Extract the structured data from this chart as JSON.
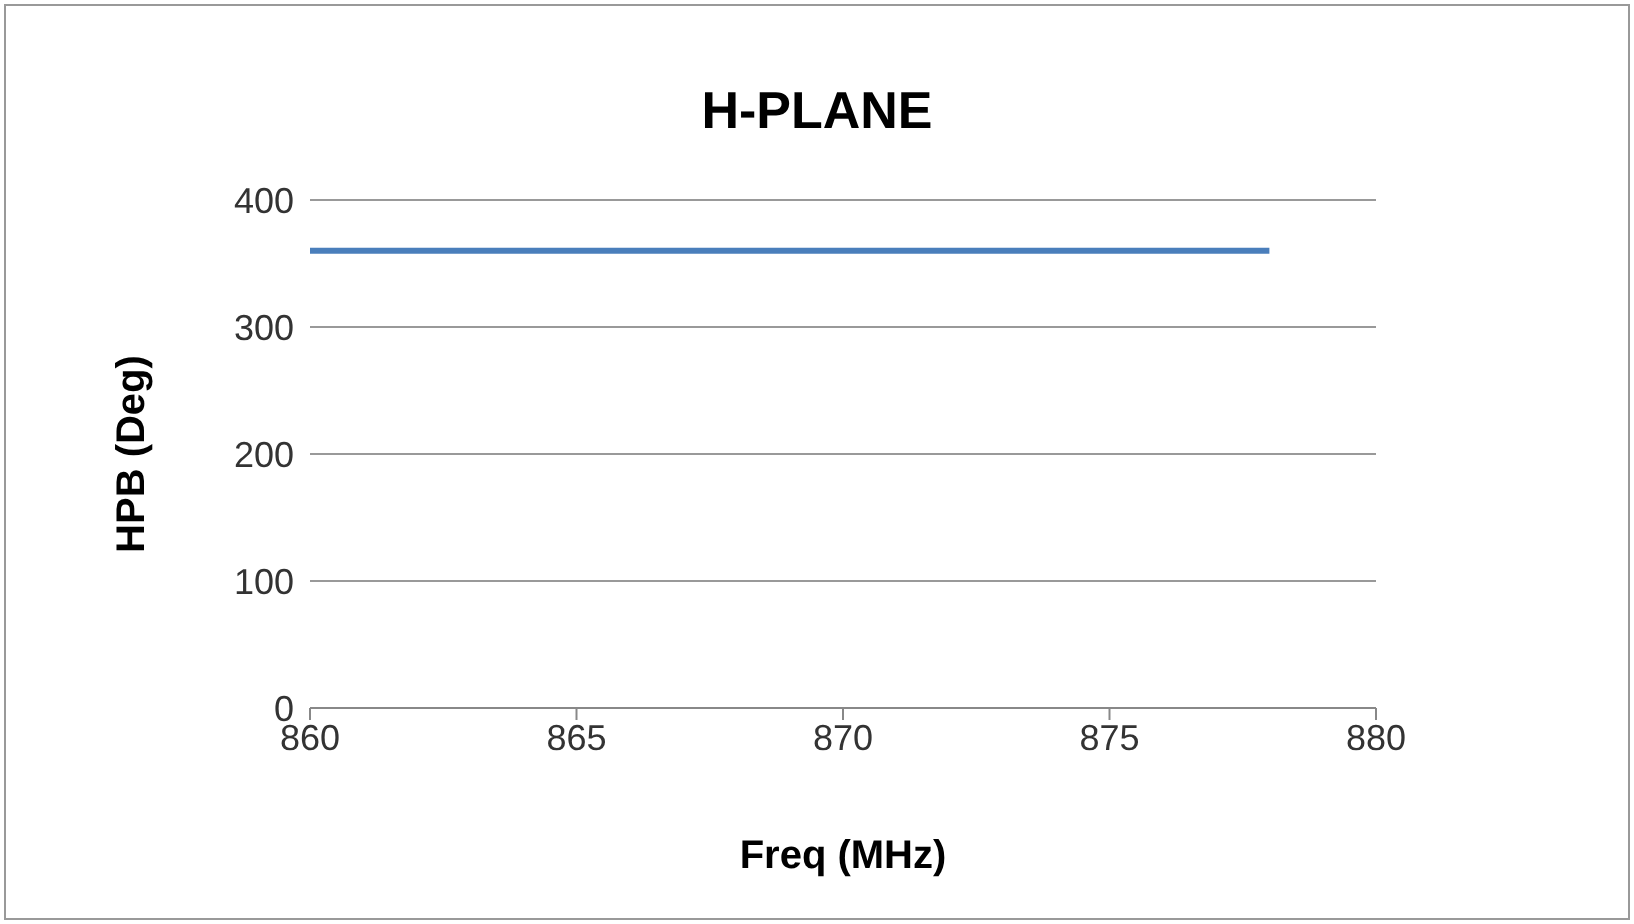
{
  "chart_data": {
    "type": "line",
    "title": "H-PLANE",
    "xlabel": "Freq (MHz)",
    "ylabel": "HPB (Deg)",
    "x": [
      860,
      878
    ],
    "series": [
      {
        "color": "#4a7ebb",
        "values": [
          360,
          360
        ]
      }
    ],
    "xlim": [
      860,
      880
    ],
    "xticks": [
      860,
      865,
      870,
      875,
      880
    ],
    "ylim": [
      0,
      400
    ],
    "yticks": [
      0,
      100,
      200,
      300,
      400
    ],
    "grid": "y",
    "legend": false,
    "marker": "none",
    "line_style": "solid"
  }
}
